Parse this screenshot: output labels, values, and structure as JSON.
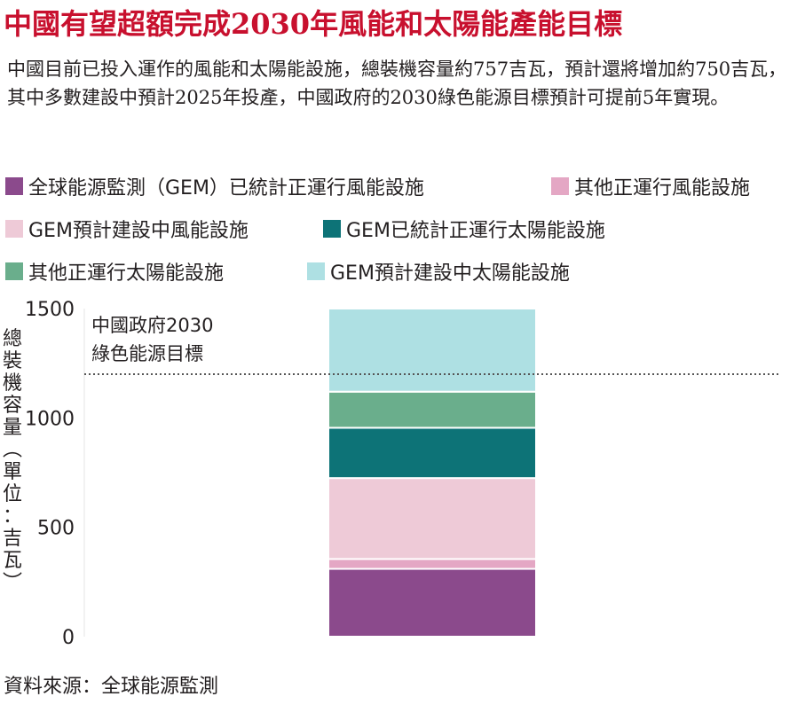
{
  "title": "中國有望超額完成2030年風能和太陽能產能目標",
  "description": "中國目前已投入運作的風能和太陽能設施，總裝機容量約757吉瓦，預計還將增加約750吉瓦，其中多數建設中預計2025年投產，中國政府的2030綠色能源目標預計可提前5年實現。",
  "source": "資料來源：全球能源監測",
  "ylabel_chars": [
    "總",
    "裝",
    "機",
    "容",
    "量",
    "︵",
    "單",
    "位",
    "：",
    "吉",
    "瓦",
    "︶"
  ],
  "target_label": [
    "中國政府2030",
    "綠色能源目標"
  ],
  "chart_data": {
    "type": "bar",
    "stacked": true,
    "categories": [
      ""
    ],
    "ylabel": "總裝機容量（單位：吉瓦）",
    "ylim": [
      0,
      1500
    ],
    "yticks": [
      "0",
      "500",
      "1000",
      "1500"
    ],
    "target_line": 1200,
    "series": [
      {
        "name": "全球能源監測（GEM）已統計正運行風能設施",
        "values": [
          310
        ],
        "color": "#8b4a8c"
      },
      {
        "name": "其他正運行風能設施",
        "values": [
          45
        ],
        "color": "#e4a7c4"
      },
      {
        "name": "GEM預計建設中風能設施",
        "values": [
          370
        ],
        "color": "#eecad7"
      },
      {
        "name": "GEM已統計正運行太陽能設施",
        "values": [
          230
        ],
        "color": "#0d7377"
      },
      {
        "name": "其他正運行太陽能設施",
        "values": [
          165
        ],
        "color": "#6aae8c"
      },
      {
        "name": "GEM預計建設中太陽能設施",
        "values": [
          380
        ],
        "color": "#aee0e3"
      }
    ]
  }
}
